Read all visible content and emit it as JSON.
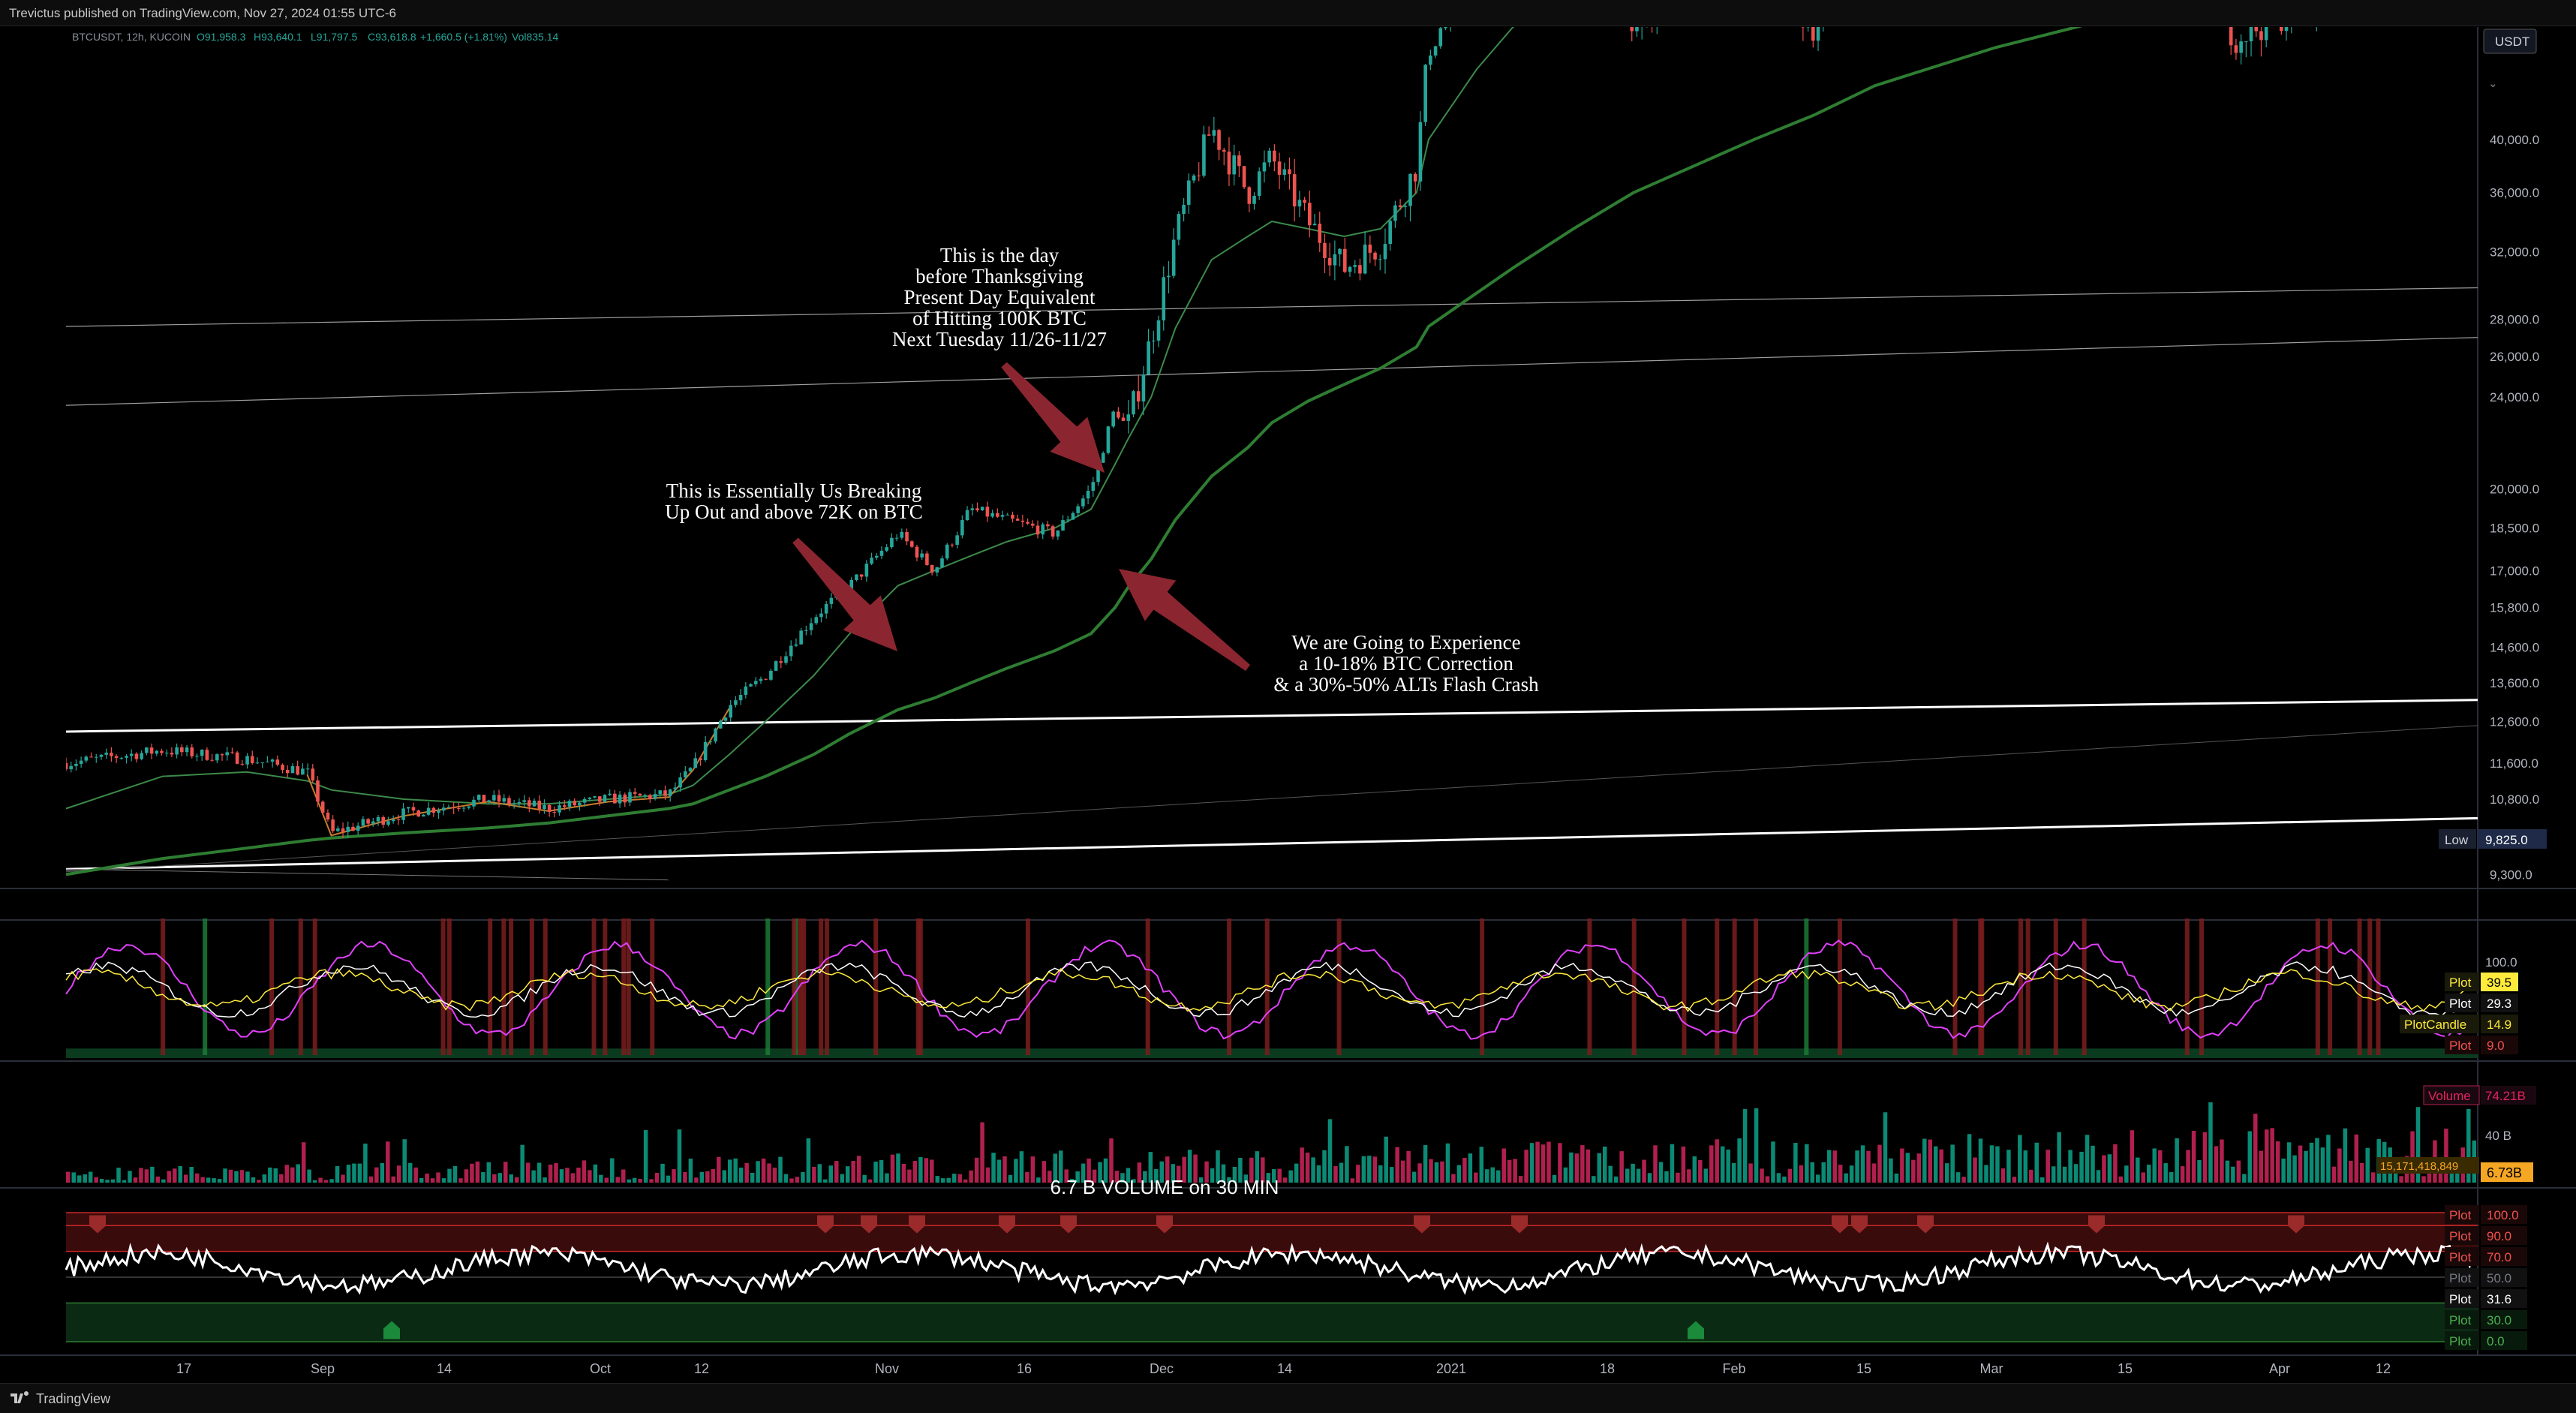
{
  "header": {
    "published_text": "Trevictus published on TradingView.com, Nov 27, 2024 01:55 UTC-6"
  },
  "footer": {
    "brand": "TradingView"
  },
  "symbol_line": {
    "symbol": "BTCUSDT, 12h, KUCOIN",
    "open": "O91,958.3",
    "high": "H93,640.1",
    "low": "L91,797.5",
    "close": "C93,618.8",
    "change": "+1,660.5 (+1.81%)",
    "volume": "Vol835.14"
  },
  "currency_badge": "USDT",
  "low_marker": {
    "label": "Low",
    "value": "9,825.0"
  },
  "annotations": [
    {
      "id": "thanksgiving",
      "lines": [
        "This is the day",
        "before Thanksgiving",
        "Present Day Equivalent",
        "of Hitting 100K BTC",
        "Next Tuesday 11/26-11/27"
      ]
    },
    {
      "id": "breakout",
      "lines": [
        "This is Essentially Us Breaking",
        "Up Out and above 72K on BTC"
      ]
    },
    {
      "id": "correction",
      "lines": [
        "We are Going to Experience",
        "a 10-18% BTC Correction",
        "& a 30%-50% ALTs Flash Crash"
      ]
    }
  ],
  "volume_note": "6.7 B VOLUME on 30 MIN",
  "colors": {
    "up": "#26a69a",
    "down": "#ef5350",
    "ma_slow": "#2e7d32",
    "ma_fast": "#3c8a4a",
    "arrow": "#8b2630",
    "vol_up": "#0b8a75",
    "vol_down": "#b0204e"
  },
  "chart_data": [
    {
      "type": "candlestick",
      "panel": "price",
      "scale": "log",
      "xlabel": "",
      "ylabel": "",
      "x_ticks": [
        "17",
        "Sep",
        "14",
        "Oct",
        "12",
        "Nov",
        "16",
        "Dec",
        "14",
        "2021",
        "18",
        "Feb",
        "15",
        "Mar",
        "15",
        "Apr",
        "12"
      ],
      "y_ticks": [
        "40,000.0",
        "36,000.0",
        "32,000.0",
        "28,000.0",
        "26,000.0",
        "24,000.0",
        "20,000.0",
        "18,500.0",
        "17,000.0",
        "15,800.0",
        "14,600.0",
        "13,600.0",
        "12,600.0",
        "11,600.0",
        "10,800.0",
        "10,000.0",
        "9,300.0"
      ],
      "ylim": [
        9100,
        50000
      ],
      "price_path_x": [
        0,
        8,
        15,
        20,
        22,
        28,
        35,
        40,
        45,
        50,
        52,
        55,
        58,
        62,
        65,
        69,
        72,
        75,
        78,
        82,
        85,
        87,
        88,
        90,
        92,
        95,
        98,
        100,
        103,
        106,
        109,
        112,
        113,
        117,
        120,
        125,
        130,
        140,
        145,
        150,
        160,
        170,
        175,
        180,
        190,
        200
      ],
      "price_path_y": [
        11600,
        11900,
        11700,
        11400,
        10100,
        10500,
        10800,
        10600,
        10800,
        10900,
        11500,
        13000,
        13800,
        15500,
        16500,
        18300,
        17000,
        19200,
        18800,
        18300,
        20000,
        23500,
        22500,
        27000,
        33000,
        41000,
        36000,
        38500,
        34000,
        31000,
        32500,
        38000,
        48000,
        56000,
        58000,
        55000,
        51000,
        56000,
        50000,
        59000,
        58000,
        63000,
        57000,
        49000,
        55000,
        60000
      ],
      "ma_fast": [
        10600,
        11300,
        11400,
        11200,
        11000,
        10800,
        10700,
        10700,
        10800,
        10900,
        11100,
        11800,
        12600,
        13800,
        15000,
        16500,
        17000,
        17500,
        18000,
        18500,
        19200,
        21000,
        22000,
        24000,
        27500,
        31500,
        33000,
        34000,
        33500,
        33000,
        33500,
        36000,
        40000,
        46000,
        50000,
        53000,
        53000,
        54000,
        53000,
        55000,
        56000,
        58000,
        56000,
        53000,
        53000,
        55000
      ],
      "ma_slow": [
        9300,
        9600,
        9800,
        9950,
        10000,
        10100,
        10200,
        10300,
        10450,
        10600,
        10700,
        11000,
        11300,
        11800,
        12300,
        12900,
        13200,
        13600,
        14000,
        14500,
        15000,
        15800,
        16400,
        17400,
        18800,
        20500,
        21700,
        22800,
        23800,
        24600,
        25400,
        26500,
        27600,
        29500,
        31000,
        33500,
        36000,
        40000,
        42000,
        44500,
        48000,
        51000,
        52500,
        53500,
        55000,
        56000
      ],
      "trendlines": [
        {
          "from": [
            0,
            12350
          ],
          "to": [
            200,
            13150
          ]
        },
        {
          "from": [
            0,
            9400
          ],
          "to": [
            200,
            10400
          ]
        },
        {
          "from": [
            0,
            23600
          ],
          "to": [
            200,
            27000
          ]
        },
        {
          "from": [
            0,
            27600
          ],
          "to": [
            200,
            29800
          ]
        }
      ]
    },
    {
      "type": "line",
      "panel": "oscillator",
      "series": [
        {
          "name": "Plot",
          "value": "39.5"
        },
        {
          "name": "Plot",
          "value": "29.3"
        },
        {
          "name": "PlotCandle",
          "value": "14.9"
        },
        {
          "name": "Plot",
          "value": "9.0"
        }
      ],
      "y_ticks": [
        "100.0"
      ],
      "ylim": [
        0,
        100
      ]
    },
    {
      "type": "bar",
      "panel": "volume",
      "series": [
        {
          "name": "Volume",
          "value": "74.21B"
        }
      ],
      "last_value": "6.73B",
      "ma_value": "15,171,418,849",
      "y_ticks": [
        "40 B"
      ]
    },
    {
      "type": "line",
      "panel": "rsi",
      "levels": [
        {
          "name": "Plot",
          "value": "100.0"
        },
        {
          "name": "Plot",
          "value": "90.0"
        },
        {
          "name": "Plot",
          "value": "70.0"
        },
        {
          "name": "Plot",
          "value": "50.0"
        },
        {
          "name": "Plot",
          "value": "31.6"
        },
        {
          "name": "Plot",
          "value": "30.0"
        },
        {
          "name": "Plot",
          "value": "0.0"
        }
      ],
      "ylim": [
        0,
        100
      ]
    }
  ]
}
